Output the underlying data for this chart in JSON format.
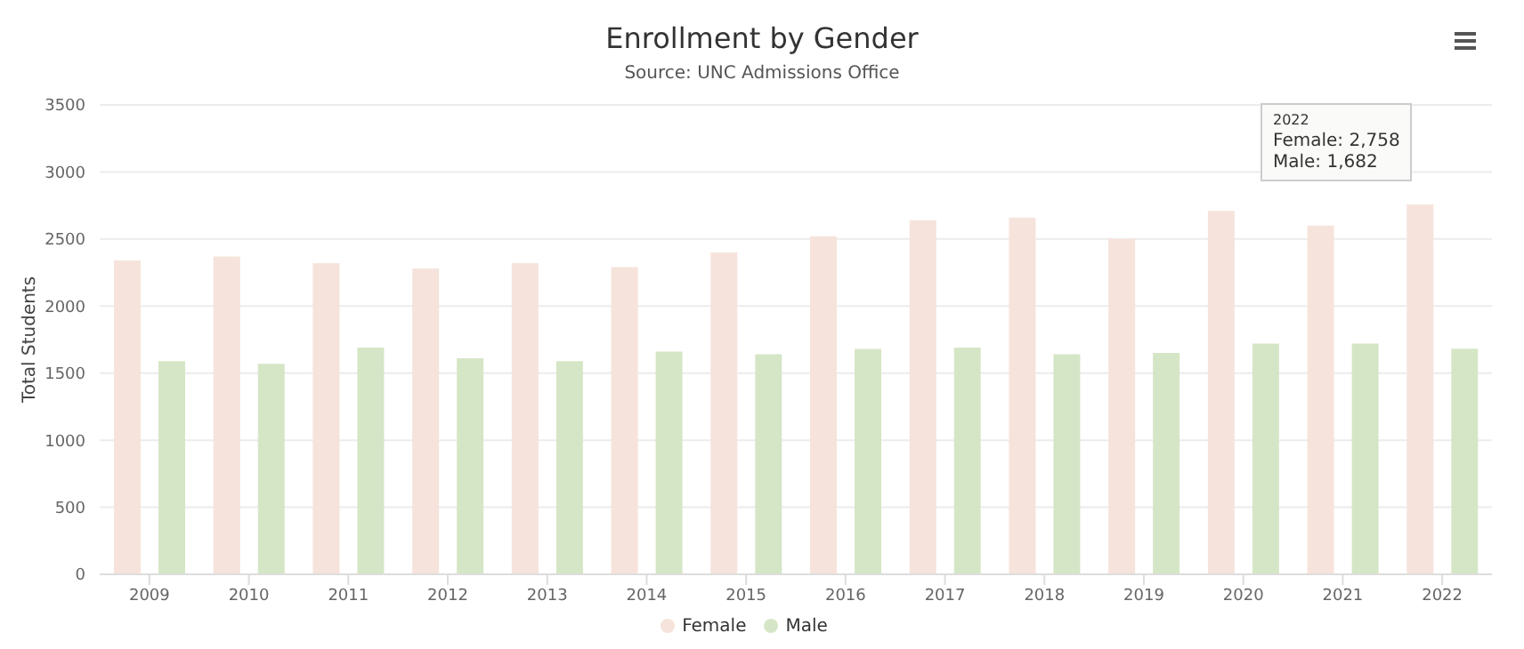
{
  "chart_data": {
    "type": "bar",
    "title": "Enrollment by Gender",
    "subtitle": "Source: UNC Admissions Office",
    "ylabel": "Total Students",
    "categories": [
      "2009",
      "2010",
      "2011",
      "2012",
      "2013",
      "2014",
      "2015",
      "2016",
      "2017",
      "2018",
      "2019",
      "2020",
      "2021",
      "2022"
    ],
    "series": [
      {
        "name": "Female",
        "color": "#f6e3db",
        "values": [
          2340,
          2370,
          2320,
          2280,
          2320,
          2290,
          2400,
          2520,
          2640,
          2660,
          2500,
          2710,
          2600,
          2758
        ]
      },
      {
        "name": "Male",
        "color": "#d5e6c6",
        "values": [
          1590,
          1570,
          1690,
          1610,
          1590,
          1660,
          1640,
          1680,
          1690,
          1640,
          1650,
          1720,
          1720,
          1682
        ]
      }
    ],
    "annotations": [
      "2022",
      "Female: 2,758",
      "Male: 1,682"
    ],
    "ylim": [
      0,
      3500
    ],
    "yticks": [
      0,
      500,
      1000,
      1500,
      2000,
      2500,
      3000,
      3500
    ],
    "grid": "y",
    "legend": "bottom"
  }
}
